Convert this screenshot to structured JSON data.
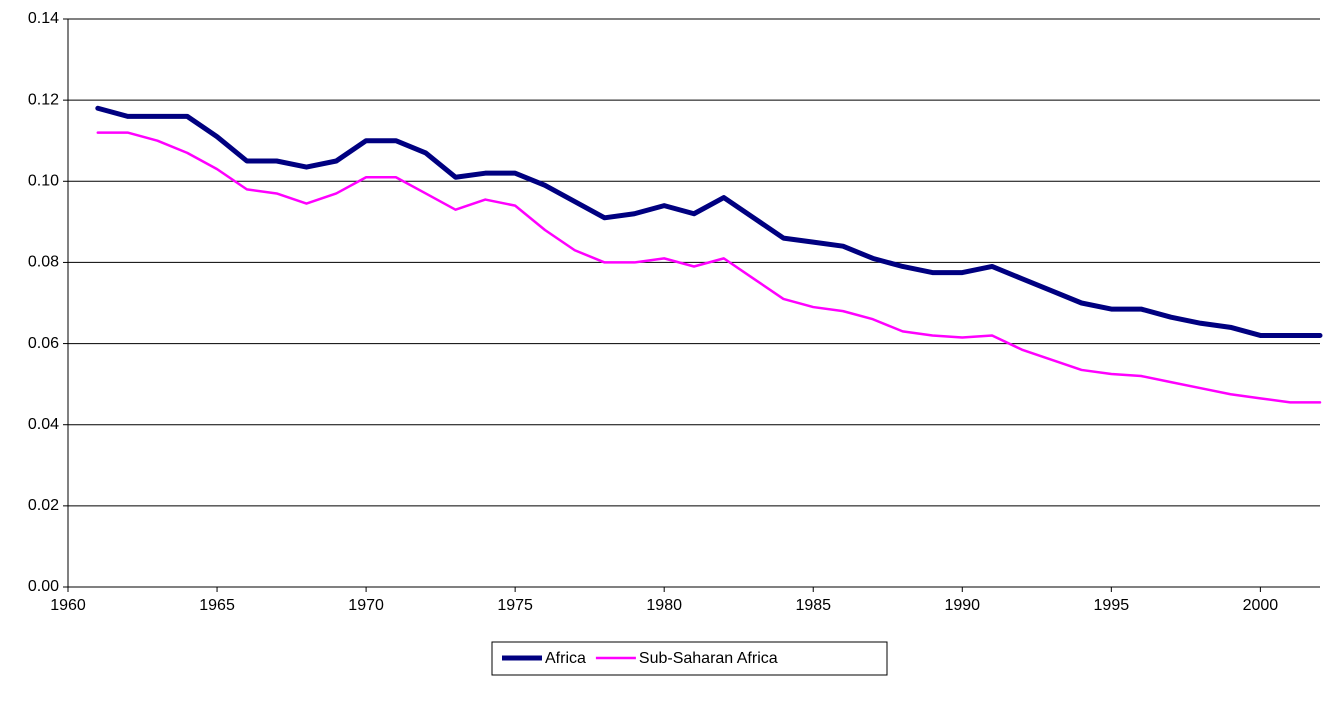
{
  "chart_data": {
    "type": "line",
    "x": [
      1961,
      1962,
      1963,
      1964,
      1965,
      1966,
      1967,
      1968,
      1969,
      1970,
      1971,
      1972,
      1973,
      1974,
      1975,
      1976,
      1977,
      1978,
      1979,
      1980,
      1981,
      1982,
      1983,
      1984,
      1985,
      1986,
      1987,
      1988,
      1989,
      1990,
      1991,
      1992,
      1993,
      1994,
      1995,
      1996,
      1997,
      1998,
      1999,
      2000,
      2001,
      2002
    ],
    "series": [
      {
        "name": "Africa",
        "color": "#000080",
        "values": [
          0.118,
          0.116,
          0.116,
          0.116,
          0.111,
          0.105,
          0.105,
          0.1035,
          0.105,
          0.11,
          0.11,
          0.107,
          0.101,
          0.102,
          0.102,
          0.099,
          0.095,
          0.091,
          0.092,
          0.094,
          0.092,
          0.096,
          0.091,
          0.086,
          0.085,
          0.084,
          0.081,
          0.079,
          0.0775,
          0.0775,
          0.079,
          0.076,
          0.073,
          0.07,
          0.0685,
          0.0685,
          0.0665,
          0.065,
          0.064,
          0.062,
          0.062,
          0.062
        ]
      },
      {
        "name": "Sub-Saharan Africa",
        "color": "#ff00ff",
        "values": [
          0.112,
          0.112,
          0.11,
          0.107,
          0.103,
          0.098,
          0.097,
          0.0945,
          0.097,
          0.101,
          0.101,
          0.097,
          0.093,
          0.0955,
          0.094,
          0.088,
          0.083,
          0.08,
          0.08,
          0.081,
          0.079,
          0.081,
          0.076,
          0.071,
          0.069,
          0.068,
          0.066,
          0.063,
          0.062,
          0.0615,
          0.062,
          0.0585,
          0.056,
          0.0535,
          0.0525,
          0.052,
          0.0505,
          0.049,
          0.0475,
          0.0465,
          0.0455,
          0.0455
        ]
      }
    ],
    "xlim": [
      1960,
      2002
    ],
    "xticks": [
      1960,
      1965,
      1970,
      1975,
      1980,
      1985,
      1990,
      1995,
      2000
    ],
    "ylim": [
      0,
      0.14
    ],
    "yticks": [
      {
        "value": 0,
        "label": "0.00"
      },
      {
        "value": 0.02,
        "label": "0.02"
      },
      {
        "value": 0.04,
        "label": "0.04"
      },
      {
        "value": 0.06,
        "label": "0.06"
      },
      {
        "value": 0.08,
        "label": "0.08"
      },
      {
        "value": 0.1,
        "label": "0.10"
      },
      {
        "value": 0.12,
        "label": "0.12"
      },
      {
        "value": 0.14,
        "label": "0.14"
      }
    ],
    "grid": true,
    "legend": "bottom"
  }
}
